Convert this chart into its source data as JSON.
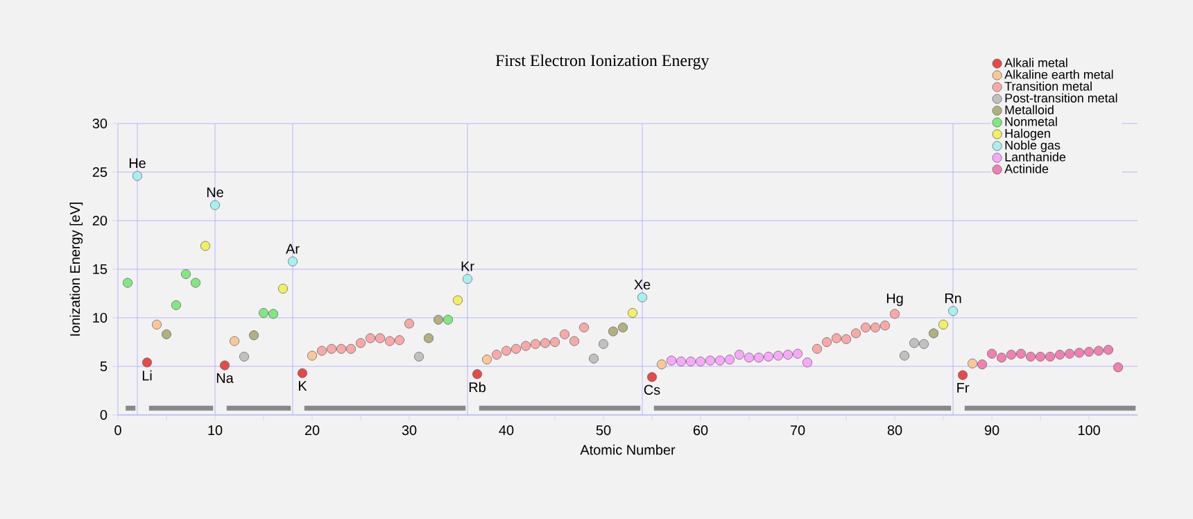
{
  "chart_data": {
    "type": "scatter",
    "title": "First Electron Ionization Energy",
    "xlabel": "Atomic Number",
    "ylabel": "Ionization Energy [eV]",
    "xlim": [
      0,
      105
    ],
    "ylim": [
      0,
      30
    ],
    "xticks": [
      0,
      {
        "value": 5,
        "label": null
      },
      10,
      {
        "value": 15,
        "label": null
      },
      20,
      {
        "value": 25,
        "label": null
      },
      30,
      {
        "value": 35,
        "label": null
      },
      40,
      {
        "value": 45,
        "label": null
      },
      50,
      {
        "value": 55,
        "label": null
      },
      60,
      {
        "value": 65,
        "label": null
      },
      70,
      {
        "value": 75,
        "label": null
      },
      80,
      {
        "value": 85,
        "label": null
      },
      90,
      {
        "value": 95,
        "label": null
      },
      100
    ],
    "yticks": [
      0,
      5,
      10,
      15,
      20,
      25,
      30
    ],
    "grid": "y",
    "legend": "top right",
    "series": [
      {
        "name": "Alkali metal",
        "marker": "circle",
        "color": "#e84848",
        "x": [
          3,
          11,
          19,
          37,
          55,
          87
        ],
        "values": [
          5.4,
          5.1,
          4.3,
          4.2,
          3.9,
          4.1
        ]
      },
      {
        "name": "Alkaline earth metal",
        "marker": "circle",
        "color": "#f8c898",
        "x": [
          4,
          12,
          20,
          38,
          56,
          88
        ],
        "values": [
          9.3,
          7.6,
          6.1,
          5.7,
          5.2,
          5.3
        ]
      },
      {
        "name": "Transition metal",
        "marker": "circle",
        "color": "#f8a8a8",
        "x": [
          21,
          22,
          23,
          24,
          25,
          26,
          27,
          28,
          29,
          30,
          39,
          40,
          41,
          42,
          43,
          44,
          45,
          46,
          47,
          48,
          72,
          73,
          74,
          75,
          76,
          77,
          78,
          79,
          80
        ],
        "values": [
          6.6,
          6.8,
          6.8,
          6.8,
          7.4,
          7.9,
          7.9,
          7.6,
          7.7,
          9.4,
          6.2,
          6.6,
          6.8,
          7.1,
          7.3,
          7.4,
          7.5,
          8.3,
          7.6,
          9.0,
          6.8,
          7.5,
          7.9,
          7.8,
          8.4,
          9.0,
          9.0,
          9.2,
          10.4
        ]
      },
      {
        "name": "Post-transition metal",
        "marker": "circle",
        "color": "#c0c0c0",
        "x": [
          13,
          31,
          49,
          50,
          81,
          82,
          83
        ],
        "values": [
          6.0,
          6.0,
          5.8,
          7.3,
          6.1,
          7.4,
          7.3
        ]
      },
      {
        "name": "Metalloid",
        "marker": "circle",
        "color": "#b0b080",
        "x": [
          5,
          14,
          32,
          33,
          51,
          52,
          84
        ],
        "values": [
          8.3,
          8.2,
          7.9,
          9.8,
          8.6,
          9.0,
          8.4
        ]
      },
      {
        "name": "Nonmetal",
        "marker": "circle",
        "color": "#80e880",
        "x": [
          1,
          6,
          7,
          8,
          15,
          16,
          34
        ],
        "values": [
          13.6,
          11.3,
          14.5,
          13.6,
          10.5,
          10.4,
          9.8
        ]
      },
      {
        "name": "Halogen",
        "marker": "circle",
        "color": "#f0f060",
        "x": [
          9,
          17,
          35,
          53,
          85
        ],
        "values": [
          17.4,
          13.0,
          11.8,
          10.5,
          9.3
        ]
      },
      {
        "name": "Noble gas",
        "marker": "circle",
        "color": "#a8f0f0",
        "x": [
          2,
          10,
          18,
          36,
          54,
          86
        ],
        "values": [
          24.6,
          21.6,
          15.8,
          14.0,
          12.1,
          10.7
        ]
      },
      {
        "name": "Lanthanide",
        "marker": "circle",
        "color": "#f8a8f8",
        "x": [
          57,
          58,
          59,
          60,
          61,
          62,
          63,
          64,
          65,
          66,
          67,
          68,
          69,
          70,
          71
        ],
        "values": [
          5.6,
          5.5,
          5.5,
          5.5,
          5.6,
          5.6,
          5.7,
          6.2,
          5.9,
          5.9,
          6.0,
          6.1,
          6.2,
          6.3,
          5.4
        ]
      },
      {
        "name": "Actinide",
        "marker": "circle",
        "color": "#f080b0",
        "x": [
          89,
          90,
          91,
          92,
          93,
          94,
          95,
          96,
          97,
          98,
          99,
          100,
          101,
          102,
          103
        ],
        "values": [
          5.2,
          6.3,
          5.9,
          6.2,
          6.3,
          6.0,
          6.0,
          6.0,
          6.2,
          6.3,
          6.4,
          6.5,
          6.6,
          6.7,
          4.9
        ]
      },
      {
        "type": "line",
        "marker": "none",
        "color": "#888888",
        "x": [
          0.8,
          1.8,
          2.5,
          3.2,
          9.8,
          10.5,
          11.2,
          17.8,
          18.5,
          19.2,
          35.8,
          36.5,
          37.2,
          53.8,
          54.5,
          55.2,
          85.8,
          86.5,
          87.2,
          104.8
        ],
        "values": [
          0.7,
          0.7,
          null,
          0.7,
          0.7,
          null,
          0.7,
          0.7,
          null,
          0.7,
          0.7,
          null,
          0.7,
          0.7,
          null,
          0.7,
          0.7,
          null,
          0.7,
          0.7
        ]
      }
    ],
    "ref_lines": [
      {
        "axis": "x",
        "value": 2,
        "color": "#a8a8ff"
      },
      {
        "axis": "x",
        "value": 10,
        "color": "#a8a8ff"
      },
      {
        "axis": "x",
        "value": 18,
        "color": "#a8a8ff"
      },
      {
        "axis": "x",
        "value": 36,
        "color": "#a8a8ff"
      },
      {
        "axis": "x",
        "value": 54,
        "color": "#a8a8ff"
      },
      {
        "axis": "x",
        "value": 86,
        "color": "#a8a8ff"
      }
    ],
    "annotations": [
      {
        "text": "He",
        "x": 2,
        "y": 24.6
      },
      {
        "text": "Li",
        "x": 3,
        "y": 5.4
      },
      {
        "text": "Ne",
        "x": 10,
        "y": 21.6
      },
      {
        "text": "Na",
        "x": 11,
        "y": 5.1
      },
      {
        "text": "Ar",
        "x": 18,
        "y": 15.8
      },
      {
        "text": "K",
        "x": 19,
        "y": 4.3
      },
      {
        "text": "Kr",
        "x": 36,
        "y": 14.0
      },
      {
        "text": "Rb",
        "x": 37,
        "y": 4.2
      },
      {
        "text": "Xe",
        "x": 54,
        "y": 12.1
      },
      {
        "text": "Cs",
        "x": 55,
        "y": 3.9
      },
      {
        "text": "Hg",
        "x": 80,
        "y": 10.4
      },
      {
        "text": "Rn",
        "x": 86,
        "y": 10.7
      },
      {
        "text": "Fr",
        "x": 87,
        "y": 4.1
      }
    ]
  }
}
